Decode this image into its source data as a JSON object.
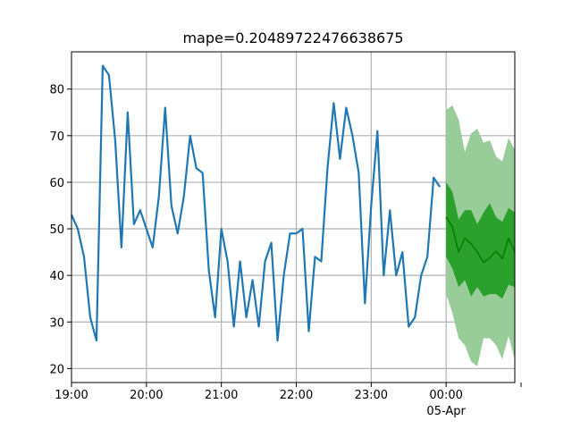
{
  "chart_data": {
    "type": "line",
    "title": "mape=0.20489722476638675",
    "xlabel": "",
    "ylabel": "",
    "grid": true,
    "x_axis": {
      "type": "time",
      "start": "2024-04-04 19:00",
      "end": "2024-04-05 00:55",
      "ticks": [
        {
          "time": "19:00",
          "label": "19:00",
          "sublabel": ""
        },
        {
          "time": "20:00",
          "label": "20:00",
          "sublabel": ""
        },
        {
          "time": "21:00",
          "label": "21:00",
          "sublabel": ""
        },
        {
          "time": "22:00",
          "label": "22:00",
          "sublabel": ""
        },
        {
          "time": "23:00",
          "label": "23:00",
          "sublabel": ""
        },
        {
          "time": "00:00",
          "label": "00:00",
          "sublabel": "05-Apr"
        },
        {
          "time": "01:00",
          "label": "",
          "sublabel": ""
        }
      ]
    },
    "y_axis": {
      "ylim": [
        17,
        88
      ],
      "ticks": [
        20,
        30,
        40,
        50,
        60,
        70,
        80
      ]
    },
    "series": [
      {
        "name": "",
        "color": "#1f77b4",
        "x": [
          "19:00",
          "19:05",
          "19:10",
          "19:15",
          "19:20",
          "19:25",
          "19:30",
          "19:35",
          "19:40",
          "19:45",
          "19:50",
          "19:55",
          "20:00",
          "20:05",
          "20:10",
          "20:15",
          "20:20",
          "20:25",
          "20:30",
          "20:35",
          "20:40",
          "20:45",
          "20:50",
          "20:55",
          "21:00",
          "21:05",
          "21:10",
          "21:15",
          "21:20",
          "21:25",
          "21:30",
          "21:35",
          "21:40",
          "21:45",
          "21:50",
          "21:55",
          "22:00",
          "22:05",
          "22:10",
          "22:15",
          "22:20",
          "22:25",
          "22:30",
          "22:35",
          "22:40",
          "22:45",
          "22:50",
          "22:55",
          "23:00",
          "23:05",
          "23:10",
          "23:15",
          "23:20",
          "23:25",
          "23:30",
          "23:35",
          "23:40",
          "23:45",
          "23:50",
          "23:55"
        ],
        "values": [
          53,
          50,
          44,
          31,
          26,
          85,
          83,
          69,
          46,
          75,
          51,
          54,
          50,
          46,
          57,
          76,
          55,
          49,
          57,
          70,
          63,
          62,
          41,
          31,
          50,
          43,
          29,
          43,
          31,
          39,
          29,
          43,
          47,
          26,
          40,
          49,
          49,
          50,
          28,
          44,
          43,
          63,
          77,
          65,
          76,
          70,
          62,
          34,
          55,
          71,
          40,
          54,
          40,
          45,
          29,
          31,
          40,
          44,
          61,
          59
        ]
      },
      {
        "name": "",
        "color": "#008000",
        "x": [
          "00:00",
          "00:05",
          "00:10",
          "00:15",
          "00:20",
          "00:25",
          "00:30",
          "00:35",
          "00:40",
          "00:45",
          "00:50",
          "00:55"
        ],
        "values": [
          52.5,
          50.5,
          45,
          48,
          46.8,
          45,
          42.8,
          43.8,
          45.2,
          43.6,
          48,
          45
        ]
      }
    ],
    "bands": [
      {
        "color": "#98cc98",
        "x": [
          "00:00",
          "00:05",
          "00:10",
          "00:15",
          "00:20",
          "00:25",
          "00:30",
          "00:35",
          "00:40",
          "00:45",
          "00:50",
          "00:55"
        ],
        "lower": [
          36,
          32,
          26.5,
          25,
          21.5,
          20.5,
          26.5,
          26.5,
          25,
          22,
          27,
          22
        ],
        "upper": [
          75.5,
          76.5,
          73.5,
          66.5,
          70.5,
          71.5,
          68.5,
          69,
          65.5,
          64.5,
          69.5,
          67
        ]
      },
      {
        "color": "#2ca02c",
        "x": [
          "00:00",
          "00:05",
          "00:10",
          "00:15",
          "00:20",
          "00:25",
          "00:30",
          "00:35",
          "00:40",
          "00:45",
          "00:50",
          "00:55"
        ],
        "lower": [
          44,
          41.5,
          37.5,
          39,
          35.5,
          37.5,
          35.5,
          36,
          36,
          35,
          38,
          37.5
        ],
        "upper": [
          60,
          58,
          52,
          54,
          54,
          51,
          53.5,
          55.5,
          52.5,
          51.5,
          54.5,
          53.5
        ]
      }
    ]
  }
}
